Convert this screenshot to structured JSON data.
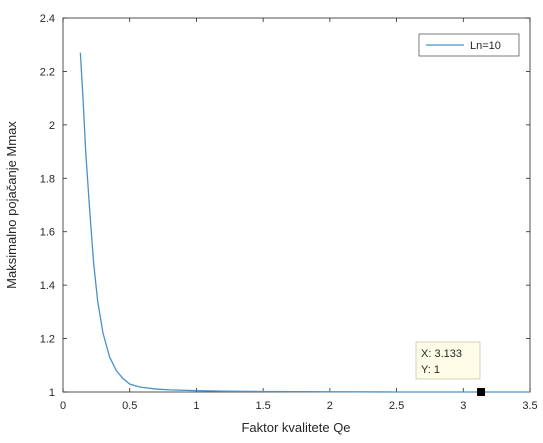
{
  "chart_data": {
    "type": "line",
    "title": "",
    "xlabel": "Faktor kvalitete Qe",
    "ylabel": "Maksimalno pojačanje Mmax",
    "xlim": [
      0,
      3.5
    ],
    "ylim": [
      1,
      2.4
    ],
    "xticks": [
      0,
      0.5,
      1,
      1.5,
      2,
      2.5,
      3,
      3.5
    ],
    "xtick_labels": [
      "0",
      "0.5",
      "1",
      "1.5",
      "2",
      "2.5",
      "3",
      "3.5"
    ],
    "yticks": [
      1,
      1.2,
      1.4,
      1.6,
      1.8,
      2,
      2.2,
      2.4
    ],
    "ytick_labels": [
      "1",
      "1.2",
      "1.4",
      "1.6",
      "1.8",
      "2",
      "2.2",
      "2.4"
    ],
    "grid": false,
    "legend_position": "top-right",
    "series": [
      {
        "name": "Ln=10",
        "color": "#4a90c8",
        "x": [
          0.13,
          0.15,
          0.17,
          0.2,
          0.23,
          0.26,
          0.3,
          0.35,
          0.4,
          0.45,
          0.5,
          0.55,
          0.6,
          0.7,
          0.8,
          1.0,
          1.2,
          1.5,
          2.0,
          2.5,
          3.0,
          3.5
        ],
        "y": [
          2.27,
          2.1,
          1.9,
          1.68,
          1.48,
          1.34,
          1.22,
          1.13,
          1.08,
          1.05,
          1.03,
          1.022,
          1.017,
          1.011,
          1.008,
          1.005,
          1.003,
          1.002,
          1.001,
          1.0,
          1.0,
          1.0
        ]
      }
    ],
    "datatip": {
      "x": 3.133,
      "y": 1,
      "x_text": "X: 3.133",
      "y_text": "Y: 1"
    }
  }
}
